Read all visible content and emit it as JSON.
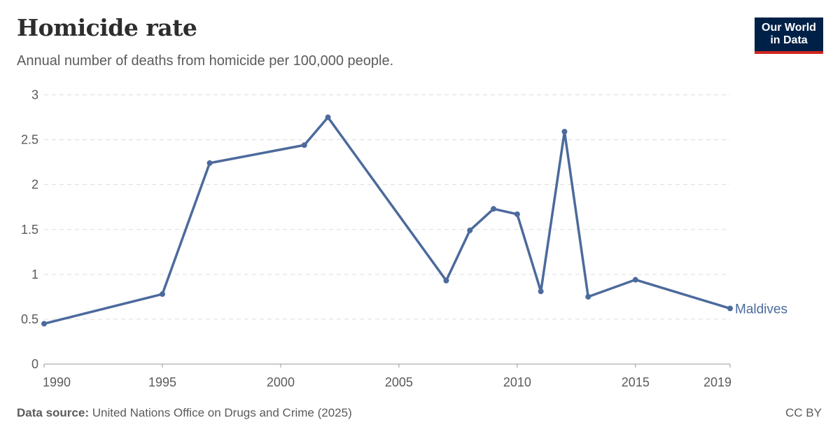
{
  "header": {
    "title": "Homicide rate",
    "subtitle": "Annual number of deaths from homicide per 100,000 people."
  },
  "logo": {
    "line1": "Our World",
    "line2": "in Data",
    "bg_color": "#002147",
    "accent_color": "#ce261e"
  },
  "footer": {
    "source_label": "Data source:",
    "source_text": " United Nations Office on Drugs and Crime (2025)",
    "license": "CC BY"
  },
  "chart_data": {
    "type": "line",
    "title": "Homicide rate",
    "subtitle": "Annual number of deaths from homicide per 100,000 people.",
    "xlabel": "",
    "ylabel": "",
    "ylim": [
      0,
      3
    ],
    "xlim": [
      1990,
      2019
    ],
    "grid": true,
    "y_ticks": [
      "0",
      "0.5",
      "1",
      "1.5",
      "2",
      "2.5",
      "3"
    ],
    "x_ticks": [
      "1990",
      "1995",
      "2000",
      "2005",
      "2010",
      "2015",
      "2019"
    ],
    "legend_position": "inline-right",
    "series": [
      {
        "name": "Maldives",
        "color": "#4c6a9c",
        "x": [
          1990,
          1995,
          1997,
          2001,
          2002,
          2007,
          2008,
          2009,
          2010,
          2011,
          2012,
          2013,
          2015,
          2019
        ],
        "values": [
          0.45,
          0.78,
          2.24,
          2.44,
          2.75,
          0.93,
          1.49,
          1.73,
          1.67,
          0.81,
          2.59,
          0.75,
          0.94,
          0.62
        ]
      }
    ]
  }
}
